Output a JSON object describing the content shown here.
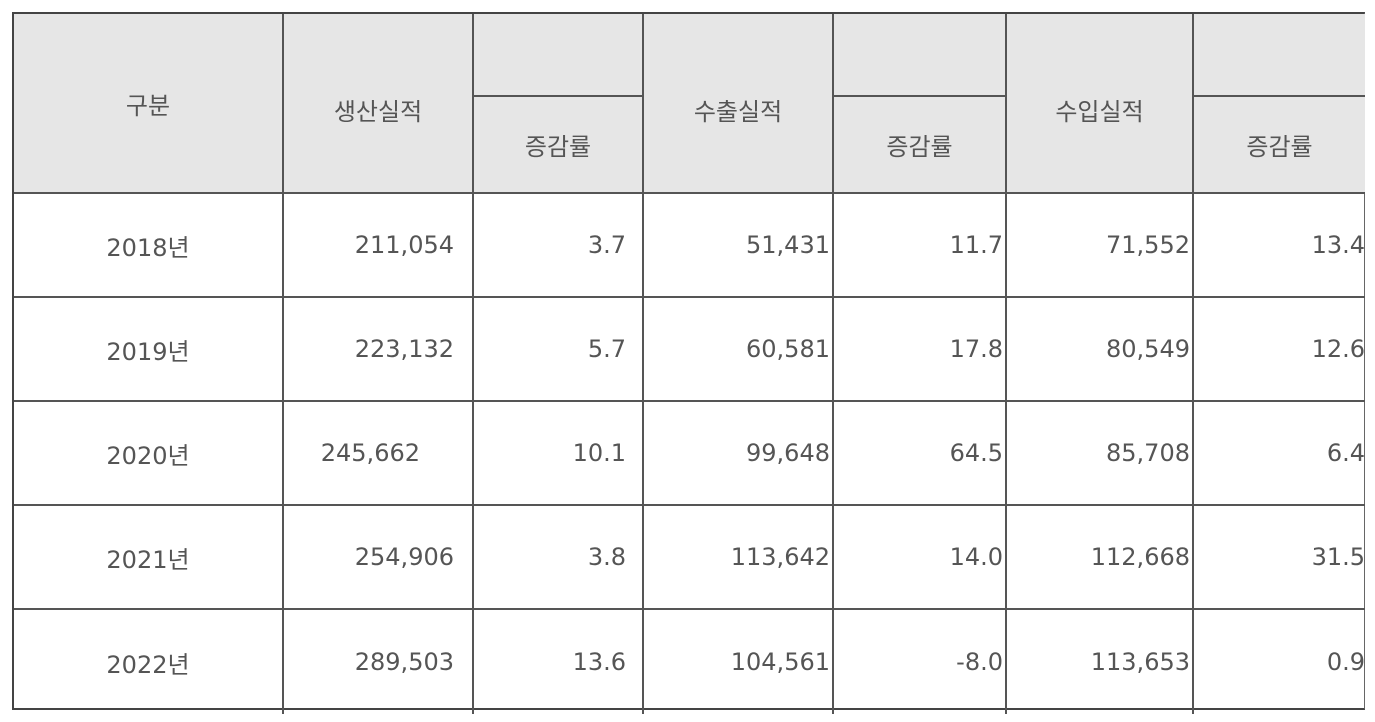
{
  "headers": {
    "category": "구분",
    "production": "생산실적",
    "production_rate": "증감률",
    "export": "수출실적",
    "export_rate": "증감률",
    "import": "수입실적",
    "import_rate": "증감률"
  },
  "rows": [
    {
      "year": "2018년",
      "production": "211,054",
      "production_rate": "3.7",
      "export": "51,431",
      "export_rate": "11.7",
      "import": "71,552",
      "import_rate": "13.4"
    },
    {
      "year": "2019년",
      "production": "223,132",
      "production_rate": "5.7",
      "export": "60,581",
      "export_rate": "17.8",
      "import": "80,549",
      "import_rate": "12.6"
    },
    {
      "year": "2020년",
      "production": "245,662",
      "production_rate": "10.1",
      "export": "99,648",
      "export_rate": "64.5",
      "import": "85,708",
      "import_rate": "6.4"
    },
    {
      "year": "2021년",
      "production": "254,906",
      "production_rate": "3.8",
      "export": "113,642",
      "export_rate": "14.0",
      "import": "112,668",
      "import_rate": "31.5"
    },
    {
      "year": "2022년",
      "production": "289,503",
      "production_rate": "13.6",
      "export": "104,561",
      "export_rate": "-8.0",
      "import": "113,653",
      "import_rate": "0.9"
    }
  ],
  "colors": {
    "header_bg": "#e6e6e6",
    "border": "#555555",
    "text": "#555555"
  }
}
